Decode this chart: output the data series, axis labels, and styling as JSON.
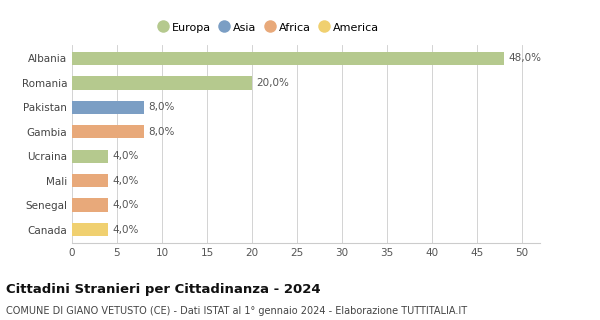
{
  "countries": [
    "Albania",
    "Romania",
    "Pakistan",
    "Gambia",
    "Ucraina",
    "Mali",
    "Senegal",
    "Canada"
  ],
  "values": [
    48.0,
    20.0,
    8.0,
    8.0,
    4.0,
    4.0,
    4.0,
    4.0
  ],
  "labels": [
    "48,0%",
    "20,0%",
    "8,0%",
    "8,0%",
    "4,0%",
    "4,0%",
    "4,0%",
    "4,0%"
  ],
  "colors": [
    "#b5c98e",
    "#b5c98e",
    "#7b9ec4",
    "#e8a97a",
    "#b5c98e",
    "#e8a97a",
    "#e8a97a",
    "#f0d070"
  ],
  "legend": [
    {
      "label": "Europa",
      "color": "#b5c98e"
    },
    {
      "label": "Asia",
      "color": "#7b9ec4"
    },
    {
      "label": "Africa",
      "color": "#e8a97a"
    },
    {
      "label": "America",
      "color": "#f0d070"
    }
  ],
  "xlim": [
    0,
    52
  ],
  "xticks": [
    0,
    5,
    10,
    15,
    20,
    25,
    30,
    35,
    40,
    45,
    50
  ],
  "title": "Cittadini Stranieri per Cittadinanza - 2024",
  "subtitle": "COMUNE DI GIANO VETUSTO (CE) - Dati ISTAT al 1° gennaio 2024 - Elaborazione TUTTITALIA.IT",
  "title_fontsize": 9.5,
  "subtitle_fontsize": 7.0,
  "bar_height": 0.55,
  "background_color": "#ffffff",
  "grid_color": "#cccccc"
}
